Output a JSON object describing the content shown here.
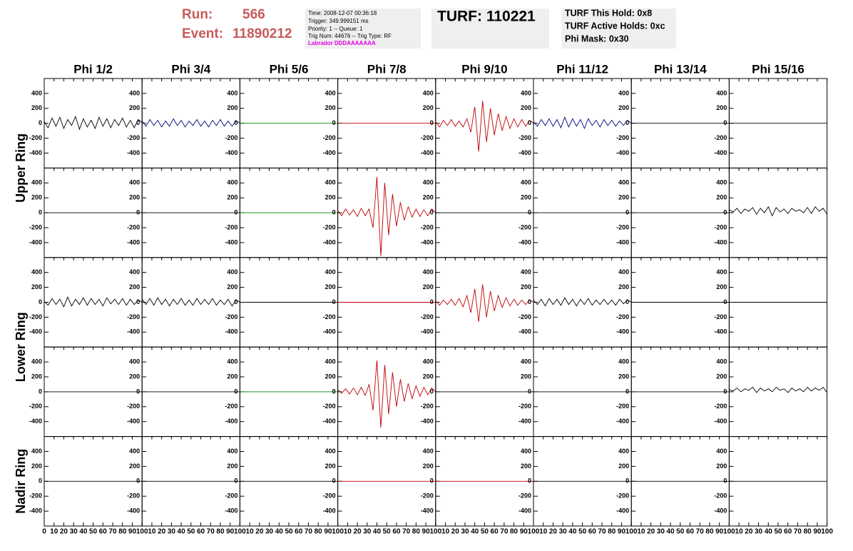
{
  "header": {
    "run_label": "Run:",
    "run": "566",
    "event_label": "Event:",
    "event": "11890212",
    "info_lines": [
      "Time: 2008-12-07 00:36:18",
      "Trigger: 349.999151 ms",
      "Priority: 1 -- Queue: 1",
      "Trig Num: 44676 -- Trig Type: RF"
    ],
    "labrador": "Labrador DDDAAAAAAA",
    "turf": "TURF: 110221",
    "turf_lines": [
      "TURF This Hold: 0x8",
      "TURF Active Holds: 0xc",
      "Phi Mask: 0x30"
    ]
  },
  "chart_data": {
    "type": "line",
    "columns": [
      "Phi 1/2",
      "Phi 3/4",
      "Phi 5/6",
      "Phi 7/8",
      "Phi 9/10",
      "Phi 11/12",
      "Phi 13/14",
      "Phi 15/16"
    ],
    "ring_labels": [
      "Upper Ring",
      "Lower Ring",
      "Nadir Ring"
    ],
    "xlim": [
      0,
      100
    ],
    "xticks": [
      0,
      10,
      20,
      30,
      40,
      50,
      60,
      70,
      80,
      90,
      100
    ],
    "ylim": [
      -600,
      600
    ],
    "yticks": [
      -400,
      -200,
      0,
      200,
      400
    ],
    "x": [
      0,
      4,
      8,
      12,
      16,
      20,
      24,
      28,
      32,
      36,
      40,
      44,
      48,
      52,
      56,
      60,
      64,
      68,
      72,
      76,
      80,
      84,
      88,
      92,
      96,
      100
    ],
    "rows": [
      [
        {
          "color": "#000000",
          "values": [
            20,
            -60,
            70,
            -40,
            80,
            -70,
            50,
            -30,
            90,
            -80,
            60,
            -50,
            40,
            -70,
            80,
            -40,
            60,
            -60,
            50,
            -30,
            70,
            -50,
            40,
            -60,
            50,
            10
          ]
        },
        {
          "color": "#000080",
          "values": [
            30,
            -40,
            50,
            -30,
            40,
            -50,
            30,
            -40,
            60,
            -30,
            40,
            -50,
            30,
            -30,
            50,
            -40,
            30,
            -50,
            40,
            -30,
            50,
            -40,
            30,
            -40,
            30,
            0
          ]
        },
        {
          "color": "#008000",
          "x": [
            0,
            100
          ],
          "values": [
            0,
            0
          ]
        },
        {
          "color": "#c00000",
          "x": [
            0,
            100
          ],
          "values": [
            0,
            0
          ]
        },
        {
          "color": "#c00000",
          "values": [
            20,
            -50,
            40,
            -30,
            50,
            -40,
            30,
            -50,
            60,
            -120,
            220,
            -380,
            300,
            -250,
            200,
            -160,
            130,
            -100,
            90,
            -70,
            60,
            -50,
            50,
            -40,
            40,
            0
          ]
        },
        {
          "color": "#000080",
          "values": [
            20,
            -40,
            50,
            -30,
            60,
            -40,
            50,
            -60,
            80,
            -50,
            60,
            -40,
            50,
            -70,
            60,
            -30,
            40,
            -50,
            50,
            -30,
            40,
            -40,
            30,
            -30,
            40,
            0
          ]
        },
        {
          "color": "#000000",
          "x": [
            0,
            100
          ],
          "values": [
            0,
            0
          ]
        },
        {
          "color": "#000000",
          "x": [
            0,
            100
          ],
          "values": [
            0,
            0
          ]
        }
      ],
      [
        {
          "color": "#000000",
          "x": [
            0,
            100
          ],
          "values": [
            0,
            0
          ]
        },
        {
          "color": "#000000",
          "x": [
            0,
            100
          ],
          "values": [
            0,
            0
          ]
        },
        {
          "color": "#008000",
          "x": [
            0,
            100
          ],
          "values": [
            0,
            0
          ]
        },
        {
          "color": "#c00000",
          "values": [
            30,
            -40,
            50,
            -30,
            40,
            -50,
            60,
            -40,
            50,
            -200,
            480,
            -580,
            400,
            -300,
            250,
            -180,
            140,
            -100,
            80,
            -60,
            50,
            -50,
            40,
            -40,
            50,
            0
          ]
        },
        {
          "color": "#000000",
          "x": [
            0,
            100
          ],
          "values": [
            0,
            0
          ]
        },
        {
          "color": "#000000",
          "x": [
            0,
            100
          ],
          "values": [
            0,
            0
          ]
        },
        {
          "color": "#000000",
          "x": [
            0,
            100
          ],
          "values": [
            0,
            0
          ]
        },
        {
          "color": "#000000",
          "values": [
            40,
            10,
            60,
            -10,
            50,
            20,
            70,
            -20,
            60,
            0,
            80,
            -40,
            70,
            10,
            50,
            -10,
            60,
            20,
            40,
            0,
            70,
            -10,
            80,
            20,
            60,
            -20
          ]
        }
      ],
      [
        {
          "color": "#000000",
          "values": [
            10,
            -40,
            50,
            -30,
            40,
            -60,
            70,
            -50,
            40,
            -30,
            60,
            -40,
            50,
            -30,
            40,
            -50,
            60,
            -20,
            40,
            -30,
            50,
            -40,
            40,
            -30,
            30,
            0
          ]
        },
        {
          "color": "#000000",
          "values": [
            40,
            -30,
            50,
            -40,
            60,
            -30,
            40,
            -50,
            40,
            -30,
            50,
            -40,
            30,
            -40,
            50,
            -30,
            40,
            -30,
            50,
            -40,
            30,
            -30,
            40,
            -50,
            30,
            0
          ]
        },
        {
          "color": "#000000",
          "x": [
            0,
            100
          ],
          "values": [
            0,
            0
          ]
        },
        {
          "color": "#c00000",
          "x": [
            0,
            100
          ],
          "values": [
            0,
            0
          ]
        },
        {
          "color": "#c00000",
          "values": [
            20,
            -40,
            30,
            -30,
            40,
            -40,
            50,
            -60,
            90,
            -140,
            180,
            -260,
            240,
            -200,
            150,
            -120,
            90,
            -70,
            60,
            -50,
            40,
            -40,
            30,
            -30,
            30,
            0
          ]
        },
        {
          "color": "#000000",
          "values": [
            30,
            -30,
            40,
            -50,
            50,
            -30,
            40,
            -40,
            60,
            -30,
            40,
            -50,
            40,
            -30,
            50,
            -40,
            30,
            -30,
            40,
            -30,
            30,
            -40,
            40,
            -20,
            30,
            0
          ]
        },
        {
          "color": "#000000",
          "x": [
            0,
            100
          ],
          "values": [
            0,
            0
          ]
        },
        {
          "color": "#000000",
          "x": [
            0,
            100
          ],
          "values": [
            0,
            0
          ]
        }
      ],
      [
        {
          "color": "#000000",
          "x": [
            0,
            100
          ],
          "values": [
            0,
            0
          ]
        },
        {
          "color": "#000000",
          "x": [
            0,
            100
          ],
          "values": [
            0,
            0
          ]
        },
        {
          "color": "#008000",
          "x": [
            0,
            100
          ],
          "values": [
            0,
            0
          ]
        },
        {
          "color": "#c00000",
          "values": [
            30,
            -20,
            40,
            -30,
            50,
            -40,
            60,
            -50,
            100,
            -250,
            420,
            -480,
            360,
            -300,
            260,
            -200,
            170,
            -130,
            110,
            -90,
            80,
            -60,
            60,
            -40,
            50,
            0
          ]
        },
        {
          "color": "#000000",
          "x": [
            0,
            100
          ],
          "values": [
            0,
            0
          ]
        },
        {
          "color": "#000000",
          "x": [
            0,
            100
          ],
          "values": [
            0,
            0
          ]
        },
        {
          "color": "#000000",
          "x": [
            0,
            100
          ],
          "values": [
            0,
            0
          ]
        },
        {
          "color": "#000000",
          "values": [
            30,
            10,
            50,
            0,
            40,
            20,
            60,
            -10,
            50,
            10,
            40,
            0,
            60,
            20,
            40,
            -10,
            50,
            10,
            40,
            0,
            60,
            10,
            50,
            20,
            60,
            -10
          ]
        }
      ],
      [
        {
          "color": "#000000",
          "x": [
            0,
            100
          ],
          "values": [
            0,
            0
          ]
        },
        {
          "color": "#000000",
          "x": [
            0,
            100
          ],
          "values": [
            0,
            0
          ]
        },
        {
          "color": "#000000",
          "x": [
            0,
            100
          ],
          "values": [
            0,
            0
          ]
        },
        {
          "color": "#c00000",
          "x": [
            0,
            100
          ],
          "values": [
            0,
            0
          ]
        },
        {
          "color": "#c00000",
          "x": [
            0,
            100
          ],
          "values": [
            0,
            0
          ]
        },
        {
          "color": "#000000",
          "x": [
            0,
            100
          ],
          "values": [
            0,
            0
          ]
        },
        {
          "color": "#000000",
          "x": [
            0,
            100
          ],
          "values": [
            0,
            0
          ]
        },
        {
          "color": "#000000",
          "x": [
            0,
            100
          ],
          "values": [
            0,
            0
          ]
        }
      ]
    ]
  }
}
